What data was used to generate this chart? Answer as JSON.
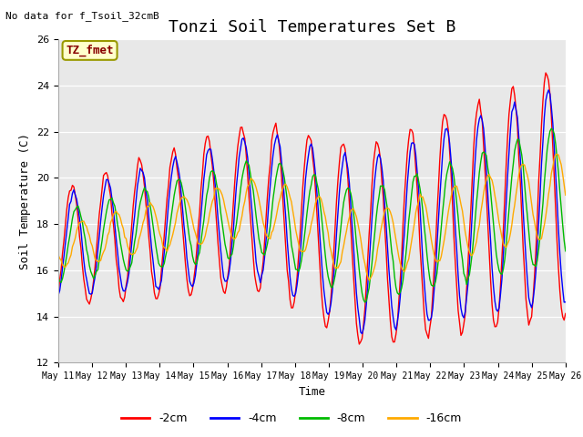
{
  "title": "Tonzi Soil Temperatures Set B",
  "xlabel": "Time",
  "ylabel": "Soil Temperature (C)",
  "note": "No data for f_Tsoil_32cmB",
  "annotation": "TZ_fmet",
  "ylim": [
    12,
    26
  ],
  "yticks": [
    12,
    14,
    16,
    18,
    20,
    22,
    24,
    26
  ],
  "xtick_labels": [
    "May 11",
    "May 12",
    "May 13",
    "May 14",
    "May 15",
    "May 16",
    "May 17",
    "May 18",
    "May 19",
    "May 20",
    "May 21",
    "May 22",
    "May 23",
    "May 24",
    "May 25",
    "May 26"
  ],
  "line_colors": [
    "#ff0000",
    "#0000ff",
    "#00bb00",
    "#ffaa00"
  ],
  "line_labels": [
    "-2cm",
    "-4cm",
    "-8cm",
    "-16cm"
  ],
  "line_width": 1.0,
  "bg_color": "#e8e8e8",
  "title_fontsize": 13,
  "label_fontsize": 9,
  "tick_fontsize": 8,
  "n_points": 360,
  "points_per_day": 24,
  "n_days": 15
}
